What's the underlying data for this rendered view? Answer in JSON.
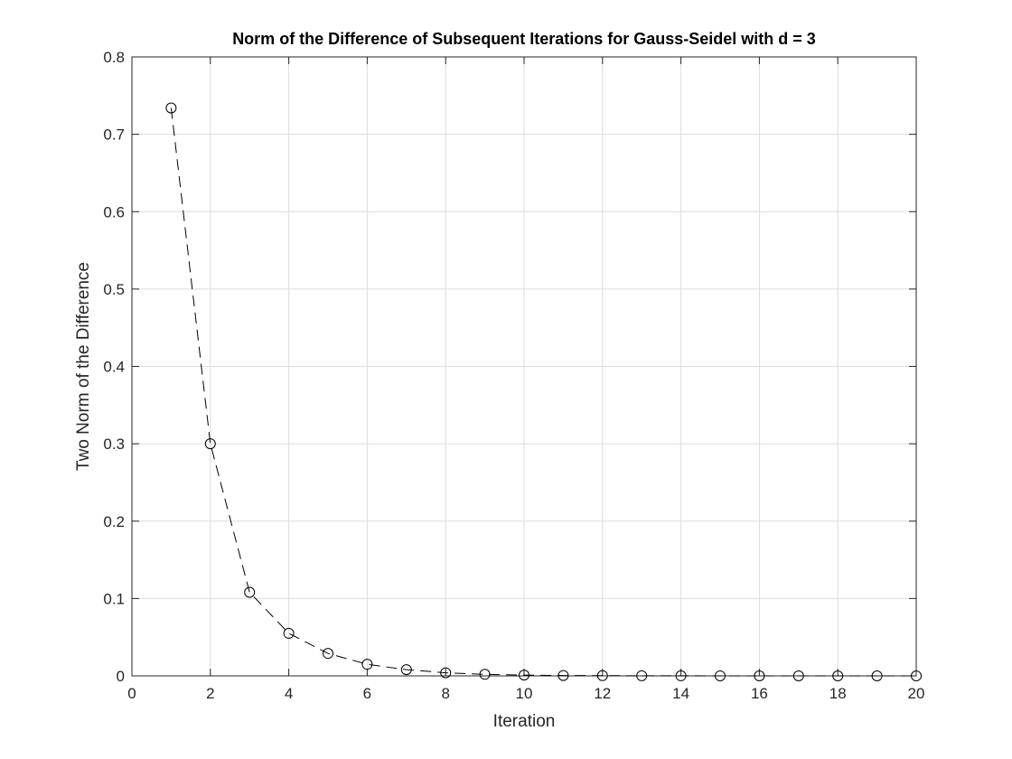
{
  "chart_data": {
    "type": "line",
    "title": "Norm of the Difference of Subsequent Iterations for Gauss-Seidel with d = 3",
    "xlabel": "Iteration",
    "ylabel": "Two Norm of the Difference",
    "xlim": [
      0,
      20
    ],
    "ylim": [
      0,
      0.8
    ],
    "xticks": [
      0,
      2,
      4,
      6,
      8,
      10,
      12,
      14,
      16,
      18,
      20
    ],
    "yticks": [
      0,
      0.1,
      0.2,
      0.3,
      0.4,
      0.5,
      0.6,
      0.7,
      0.8
    ],
    "xtick_labels": [
      "0",
      "2",
      "4",
      "6",
      "8",
      "10",
      "12",
      "14",
      "16",
      "18",
      "20"
    ],
    "ytick_labels": [
      "0",
      "0.1",
      "0.2",
      "0.3",
      "0.4",
      "0.5",
      "0.6",
      "0.7",
      "0.8"
    ],
    "grid": true,
    "line_style": "dashed",
    "marker": "circle",
    "color": "#000000",
    "series": [
      {
        "x": [
          1,
          2,
          3,
          4,
          5,
          6,
          7,
          8,
          9,
          10,
          11,
          12,
          13,
          14,
          15,
          16,
          17,
          18,
          19,
          20
        ],
        "values": [
          0.734,
          0.3,
          0.108,
          0.055,
          0.029,
          0.015,
          0.008,
          0.004,
          0.002,
          0.001,
          0.0005,
          0.0003,
          0.00015,
          0.0001,
          5e-05,
          3e-05,
          2e-05,
          1e-05,
          5e-06,
          3e-06
        ]
      }
    ]
  }
}
